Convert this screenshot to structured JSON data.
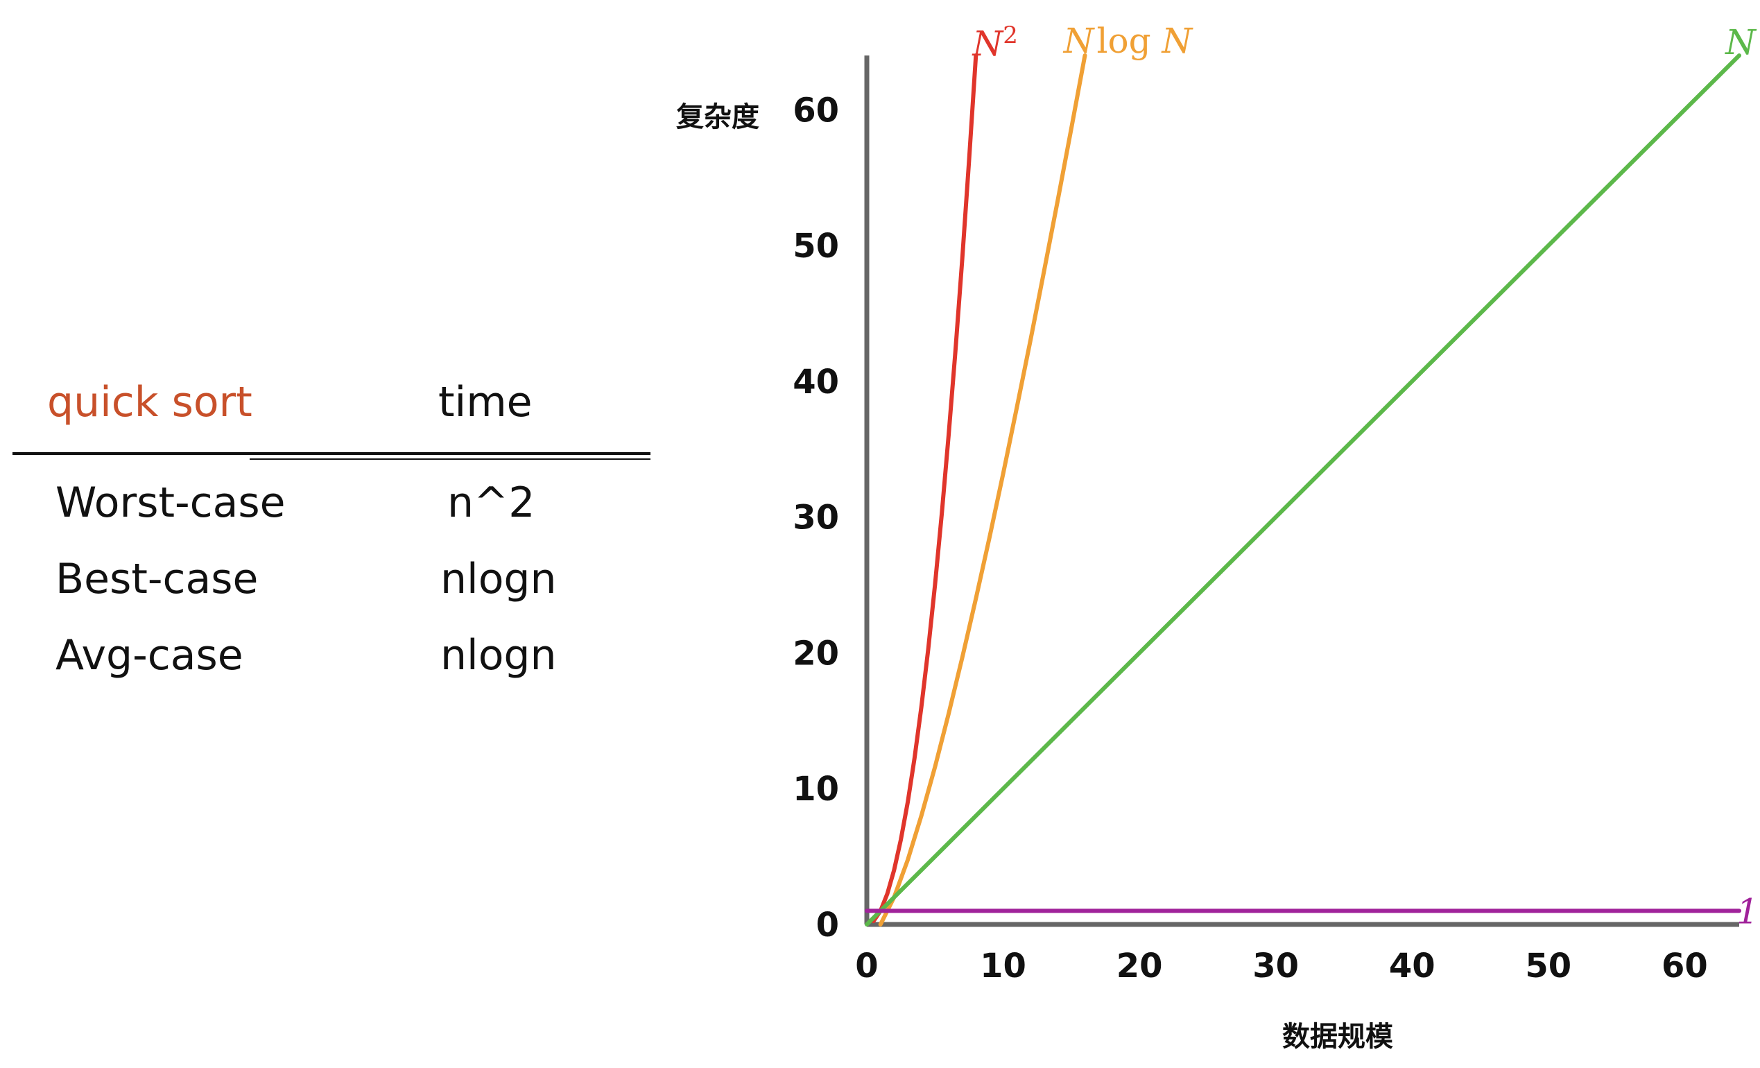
{
  "table": {
    "header": {
      "algorithm": "quick sort",
      "time": "time"
    },
    "header_color": "#c8502a",
    "rows": [
      {
        "case": "Worst-case",
        "time": "n^2"
      },
      {
        "case": "Best-case",
        "time": "nlogn"
      },
      {
        "case": "Avg-case",
        "time": "nlogn"
      }
    ]
  },
  "chart_data": {
    "type": "line",
    "xlabel": "数据规模",
    "ylabel": "复杂度",
    "xlim": [
      0,
      64
    ],
    "ylim": [
      0,
      64
    ],
    "xticks": [
      "0",
      "10",
      "20",
      "30",
      "40",
      "50",
      "60"
    ],
    "yticks": [
      "0",
      "10",
      "20",
      "30",
      "40",
      "50",
      "60"
    ],
    "grid": false,
    "series": [
      {
        "name": "N²",
        "label_base": "N",
        "label_sup": "2",
        "color": "#e0352b",
        "x": [
          0.5,
          1,
          1.5,
          2,
          2.5,
          3,
          3.5,
          4,
          4.5,
          5,
          5.5,
          6,
          6.5,
          7,
          7.5,
          8
        ],
        "y": [
          0.25,
          1,
          2.25,
          4,
          6.25,
          9,
          12.25,
          16,
          20.25,
          25,
          30.25,
          36,
          42.25,
          49,
          56.25,
          64
        ]
      },
      {
        "name": "N log N",
        "label_base": "N",
        "label_log": "log",
        "label_end": "N",
        "color": "#f0a035",
        "x": [
          1,
          2,
          3,
          4,
          5,
          6,
          7,
          8,
          9,
          10,
          11,
          12,
          13,
          14,
          15,
          16
        ],
        "y": [
          0,
          2,
          4.75,
          8,
          11.6,
          15.5,
          19.65,
          24,
          28.5,
          33.2,
          38.05,
          43,
          48.1,
          53.3,
          58.6,
          64
        ]
      },
      {
        "name": "N",
        "label_base": "N",
        "color": "#5cb84a",
        "x": [
          0,
          64
        ],
        "y": [
          0,
          64
        ]
      },
      {
        "name": "1",
        "label_base": "1",
        "color": "#a0229a",
        "x": [
          0,
          64
        ],
        "y": [
          1,
          1
        ]
      }
    ]
  }
}
